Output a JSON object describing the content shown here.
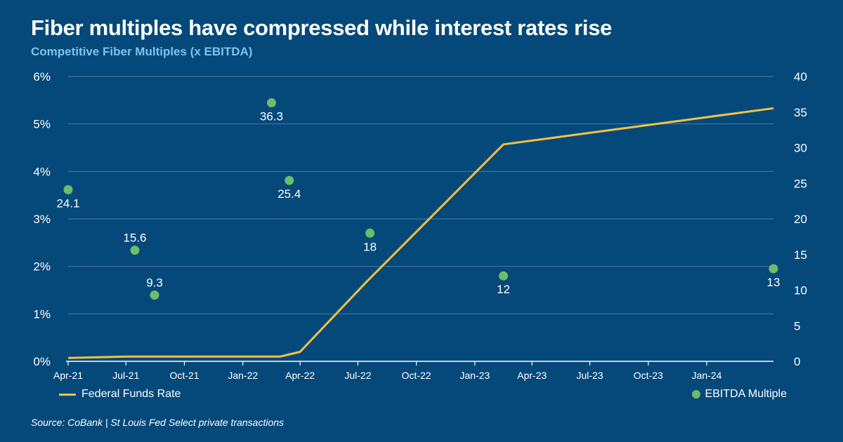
{
  "header": {
    "title": "Fiber multiples have compressed while interest rates rise",
    "subtitle": "Competitive Fiber Multiples (x EBITDA)"
  },
  "footer": {
    "source": "Source: CoBank | St Louis Fed Select private transactions"
  },
  "colors": {
    "background": "#05497a",
    "line": "#f5c242",
    "points": "#6cbd6a",
    "grid": "#4a7aa3",
    "subtitle": "#7cc4ee"
  },
  "chart_data": {
    "type": "line",
    "grid": true,
    "legend_placement": "bottom",
    "x_axis": {
      "ticks": [
        "Apr-21",
        "Jul-21",
        "Oct-21",
        "Jan-22",
        "Apr-22",
        "Jul-22",
        "Oct-22",
        "Jan-23",
        "Apr-23",
        "Jul-23",
        "Oct-23",
        "Jan-24"
      ],
      "range": [
        "2021-04-01",
        "2024-04-15"
      ]
    },
    "y_left": {
      "ticks": [
        "0%",
        "1%",
        "2%",
        "3%",
        "4%",
        "5%",
        "6%"
      ],
      "range": [
        0,
        6
      ],
      "unit": "%"
    },
    "y_right": {
      "ticks": [
        "0",
        "5",
        "10",
        "15",
        "20",
        "25",
        "30",
        "35",
        "40"
      ],
      "range": [
        0,
        40
      ]
    },
    "series": [
      {
        "name": "Federal Funds Rate",
        "axis": "left",
        "style": "line",
        "points": [
          {
            "x": "2021-04-01",
            "y": 0.07
          },
          {
            "x": "2021-07-01",
            "y": 0.1
          },
          {
            "x": "2022-03-01",
            "y": 0.1
          },
          {
            "x": "2022-04-01",
            "y": 0.2
          },
          {
            "x": "2022-07-15",
            "y": 1.68
          },
          {
            "x": "2023-02-15",
            "y": 4.57
          },
          {
            "x": "2024-04-15",
            "y": 5.33
          }
        ]
      },
      {
        "name": "EBITDA Multiple",
        "axis": "right",
        "style": "scatter",
        "points": [
          {
            "x": "2021-04-01",
            "y": 24.1,
            "label": "24.1",
            "label_pos": "below"
          },
          {
            "x": "2021-07-15",
            "y": 15.6,
            "label": "15.6",
            "label_pos": "above"
          },
          {
            "x": "2021-08-15",
            "y": 9.3,
            "label": "9.3",
            "label_pos": "above"
          },
          {
            "x": "2022-02-15",
            "y": 36.3,
            "label": "36.3",
            "label_pos": "below"
          },
          {
            "x": "2022-03-15",
            "y": 25.4,
            "label": "25.4",
            "label_pos": "below"
          },
          {
            "x": "2022-07-20",
            "y": 18,
            "label": "18",
            "label_pos": "below"
          },
          {
            "x": "2023-02-15",
            "y": 12,
            "label": "12",
            "label_pos": "below"
          },
          {
            "x": "2024-04-15",
            "y": 13,
            "label": "13",
            "label_pos": "below"
          }
        ]
      }
    ]
  }
}
